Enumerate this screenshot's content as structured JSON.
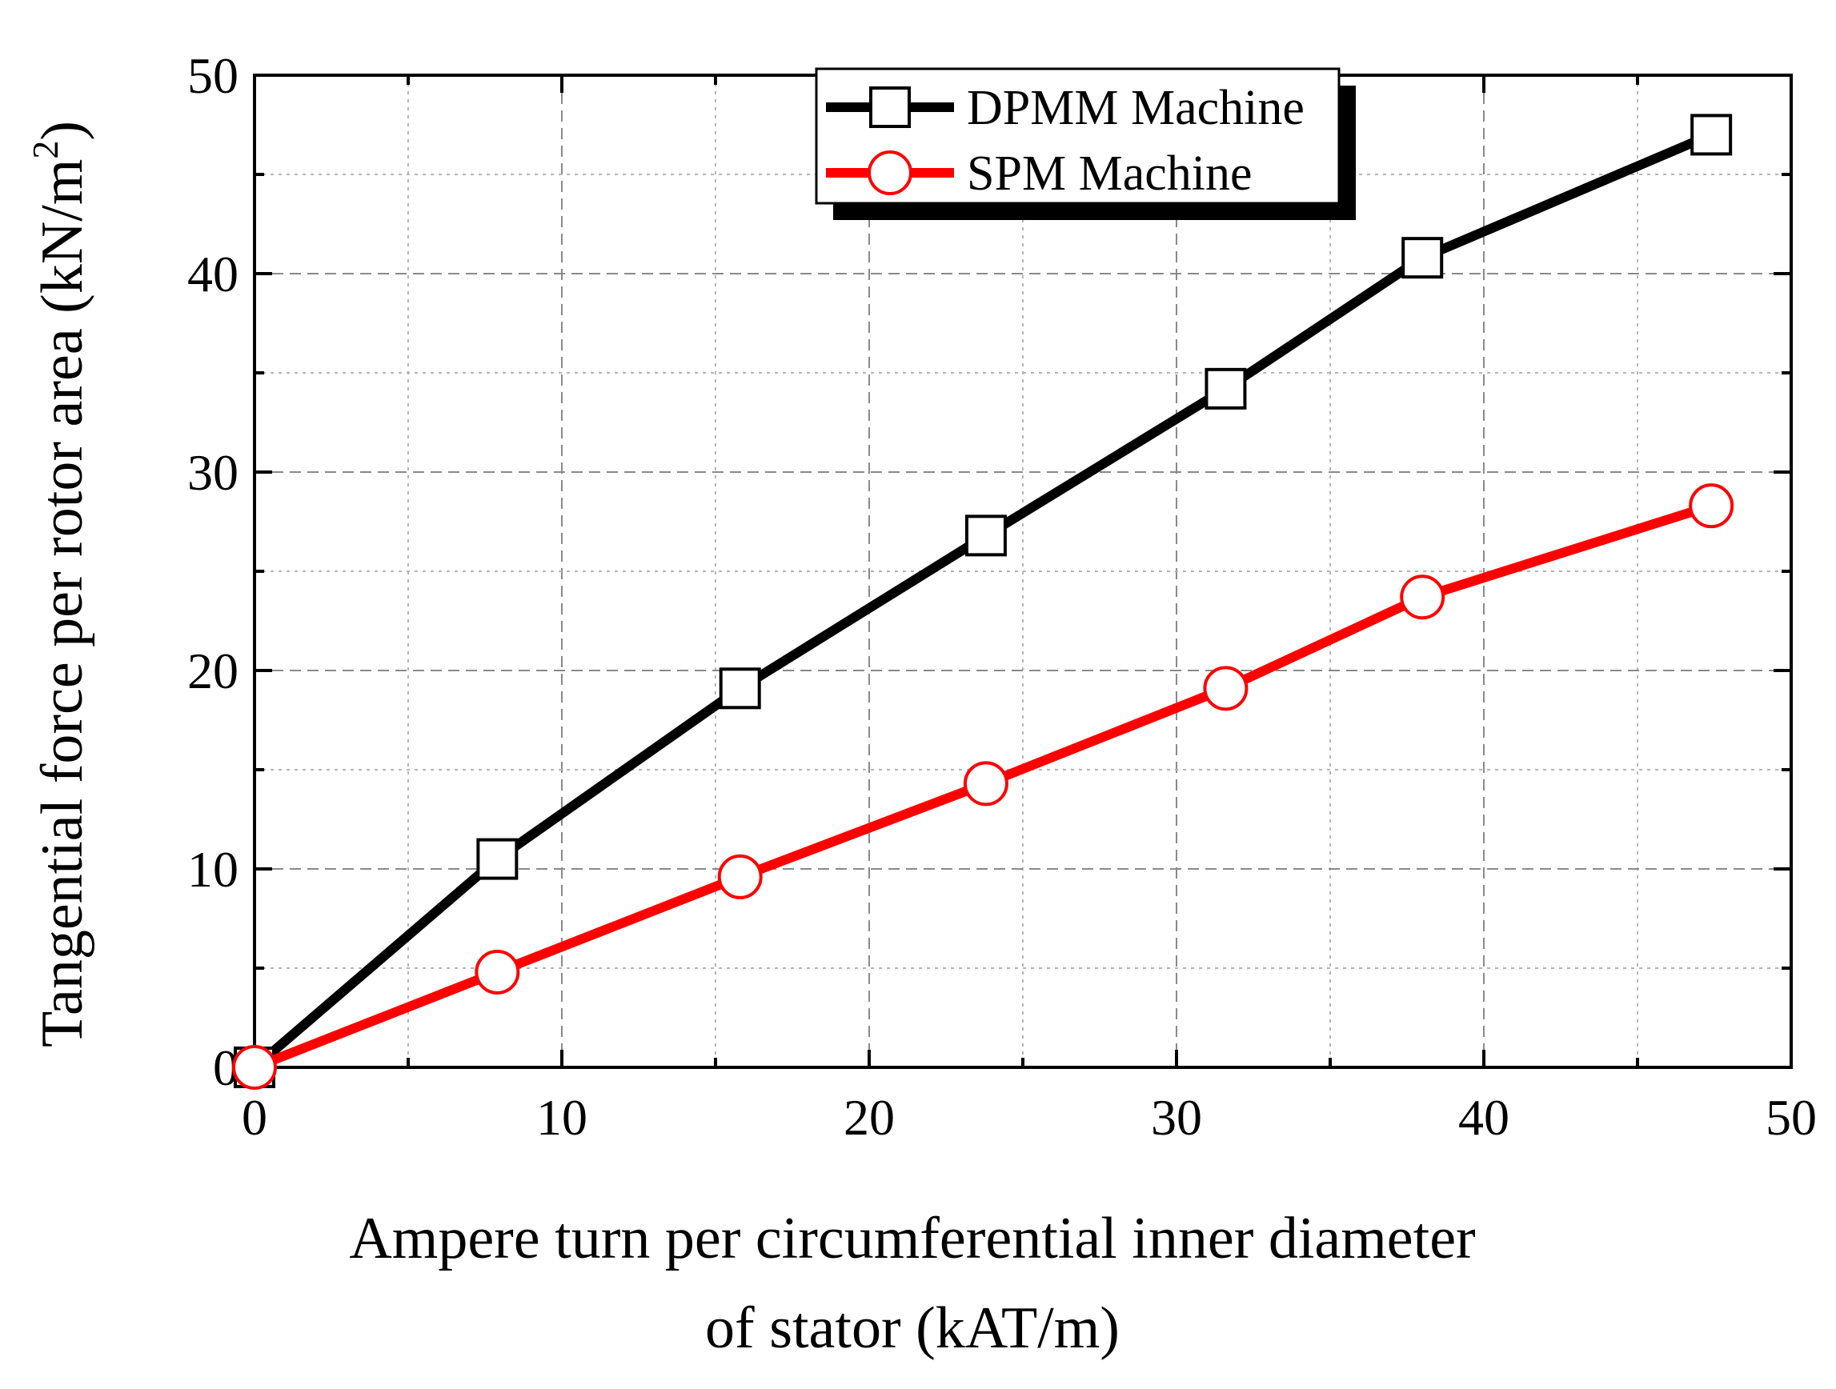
{
  "chart_data": {
    "type": "line",
    "title": "",
    "xlabel_line1": "Ampere turn per circumferential inner diameter",
    "xlabel_line2": "of stator (kAT/m)",
    "ylabel_main": "Tangential force per rotor area (kN/m",
    "ylabel_sup": "2",
    "ylabel_close": ")",
    "xlim": [
      0,
      50
    ],
    "ylim": [
      0,
      50
    ],
    "xticks": [
      0,
      10,
      20,
      30,
      40,
      50
    ],
    "yticks": [
      0,
      10,
      20,
      30,
      40,
      50
    ],
    "x_tick_labels": [
      "0",
      "10",
      "20",
      "30",
      "40",
      "50"
    ],
    "y_tick_labels": [
      "0",
      "10",
      "20",
      "30",
      "40",
      "50"
    ],
    "grid": true,
    "legend_position": "top-center",
    "series": [
      {
        "name": "DPMM Machine",
        "color": "#000000",
        "marker": "square",
        "x": [
          0,
          7.9,
          15.8,
          23.8,
          31.6,
          38,
          47.4
        ],
        "y": [
          0,
          10.5,
          19.1,
          26.8,
          34.2,
          40.8,
          47
        ]
      },
      {
        "name": "SPM Machine",
        "color": "#ff0000",
        "marker": "circle",
        "x": [
          0,
          7.9,
          15.8,
          23.8,
          31.6,
          38,
          47.4
        ],
        "y": [
          0,
          4.8,
          9.6,
          14.3,
          19.1,
          23.7,
          28.3
        ]
      }
    ]
  }
}
